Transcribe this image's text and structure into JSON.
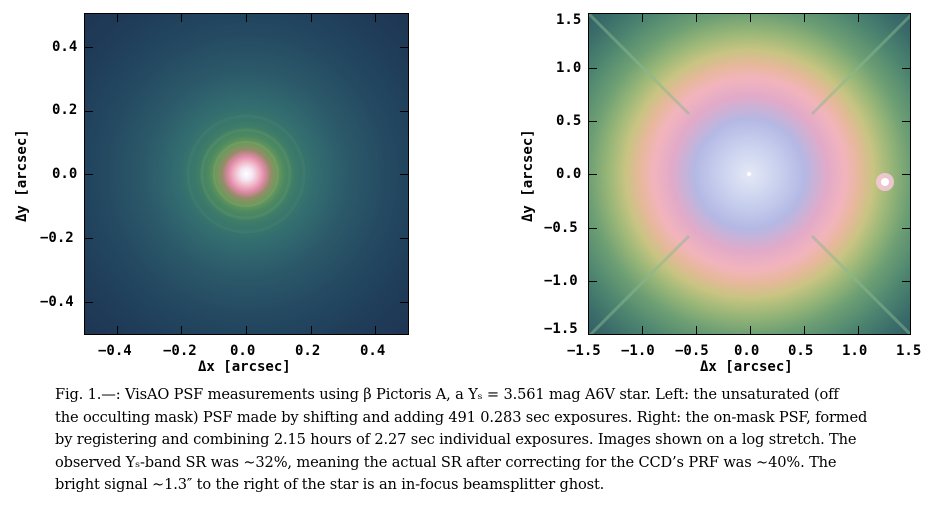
{
  "figure": {
    "left_panel": {
      "xlabel": "Δx [arcsec]",
      "ylabel": "Δy [arcsec]",
      "xticks": [
        "−0.4",
        "−0.2",
        "0.0",
        "0.2",
        "0.4"
      ],
      "yticks": [
        "0.4",
        "0.2",
        "0.0",
        "−0.2",
        "−0.4"
      ]
    },
    "right_panel": {
      "xlabel": "Δx [arcsec]",
      "ylabel": "Δy [arcsec]",
      "xticks": [
        "−1.5",
        "−1.0",
        "−0.5",
        "0.0",
        "0.5",
        "1.0",
        "1.5"
      ],
      "yticks": [
        "1.5",
        "1.0",
        "0.5",
        "0.0",
        "−0.5",
        "−1.0",
        "−1.5"
      ]
    }
  },
  "caption": {
    "line1": "Fig. 1.—: VisAO PSF measurements using β Pictoris A, a Yₛ = 3.561 mag A6V star. Left: the unsaturated (off",
    "line2": "the occulting mask) PSF made by shifting and adding 491 0.283 sec exposures. Right: the on-mask PSF, formed",
    "line3": "by registering and combining 2.15 hours of 2.27 sec individual exposures. Images shown on a log stretch. The",
    "line4": "observed Yₛ-band SR was ∼32%, meaning the actual SR after correcting for the CCD’s PRF was ∼40%. The",
    "line5": "bright signal ∼1.3″ to the right of the star is an in-focus beamsplitter ghost."
  }
}
